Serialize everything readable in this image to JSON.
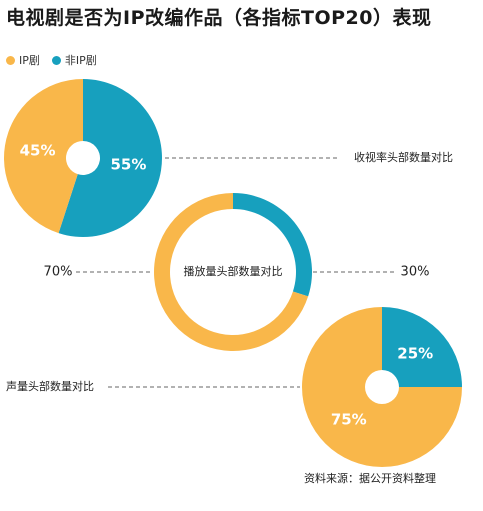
{
  "title": "电视剧是否为IP改编作品（各指标TOP20）表现",
  "source": "资料来源：据公开资料整理",
  "colors": {
    "ip": "#f9b74a",
    "non_ip": "#17a0be",
    "leader": "#333333"
  },
  "chart_data": {
    "type": "pie",
    "title": "电视剧是否为IP改编作品（各指标TOP20）表现",
    "legend": {
      "position": "top-left",
      "entries": [
        "IP剧",
        "非IP剧"
      ]
    },
    "series_names": [
      "IP剧",
      "非IP剧"
    ],
    "charts": [
      {
        "metric": "收视率头部数量对比",
        "style": "pie",
        "values": [
          45,
          55
        ],
        "labels": [
          "45%",
          "55%"
        ],
        "label_side": "right"
      },
      {
        "metric": "播放量头部数量对比",
        "style": "donut",
        "values": [
          70,
          30
        ],
        "labels": [
          "70%",
          "30%"
        ],
        "label_side": "center"
      },
      {
        "metric": "声量头部数量对比",
        "style": "pie",
        "values": [
          75,
          25
        ],
        "labels": [
          "75%",
          "25%"
        ],
        "label_side": "left"
      }
    ]
  }
}
